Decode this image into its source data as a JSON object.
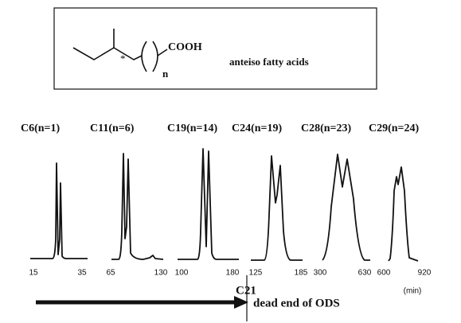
{
  "structure": {
    "group": "COOH",
    "subscript": "n",
    "stereo_mark": "*",
    "caption": "anteiso fatty acids"
  },
  "panels": [
    {
      "label": "C6(n=1)",
      "ticks": [
        "15",
        "35"
      ]
    },
    {
      "label": "C11(n=6)",
      "ticks": [
        "65",
        "130"
      ]
    },
    {
      "label": "C19(n=14)",
      "ticks": [
        "100",
        "180"
      ]
    },
    {
      "label": "C24(n=19)",
      "ticks": [
        "125",
        "185"
      ]
    },
    {
      "label": "C28(n=23)",
      "ticks": [
        "300",
        "630"
      ]
    },
    {
      "label": "C29(n=24)",
      "ticks": [
        "600",
        "920"
      ]
    }
  ],
  "time_unit": "(min)",
  "marker": {
    "label": "C21",
    "note": "dead end of ODS"
  }
}
